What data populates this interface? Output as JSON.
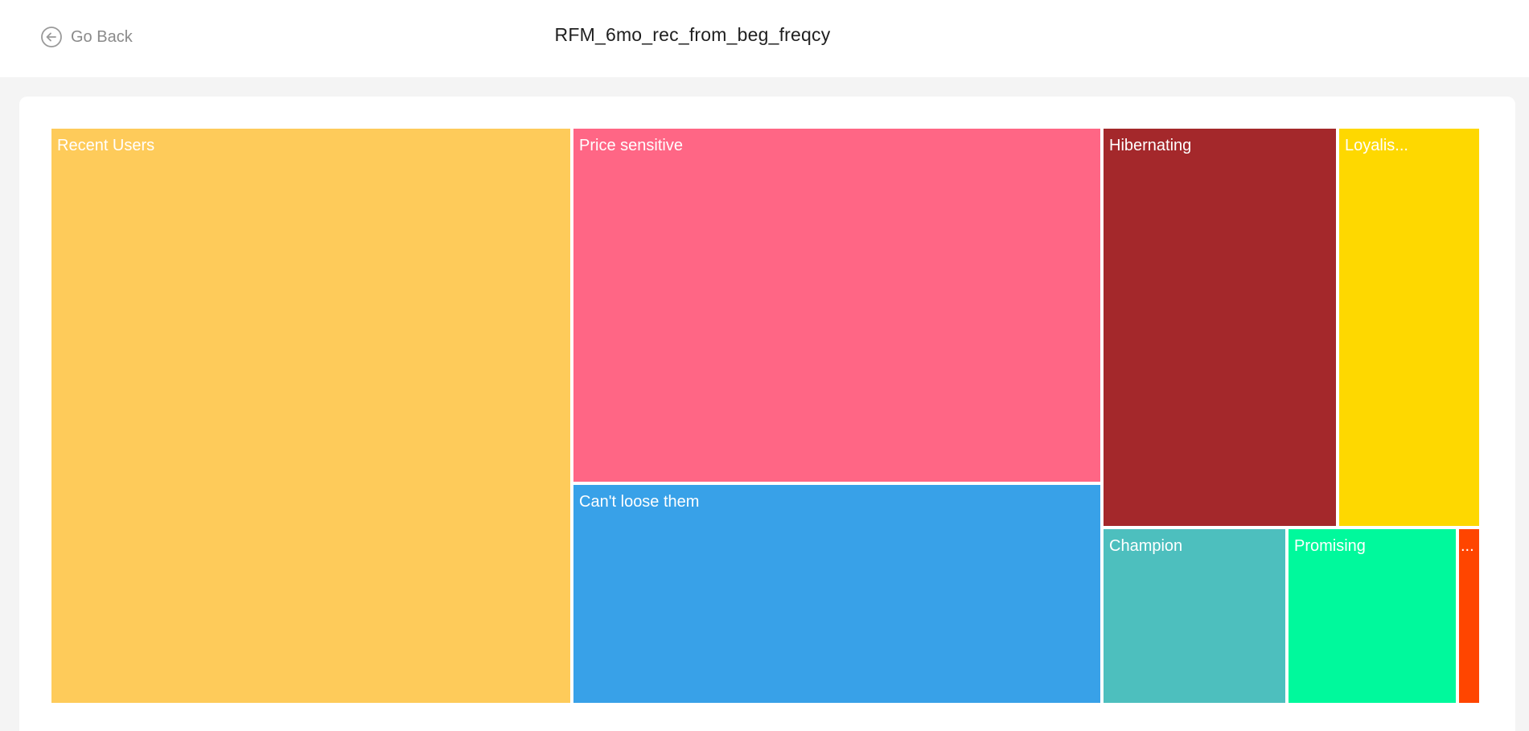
{
  "header": {
    "back_label": "Go Back",
    "back_icon": "arrow-left-circle-icon",
    "title": "RFM_6mo_rec_from_beg_freqcy"
  },
  "chart_data": {
    "type": "treemap",
    "title": "",
    "segments": [
      {
        "id": "recent-users",
        "label": "Recent Users",
        "color": "#fecb5a"
      },
      {
        "id": "price-sensitive",
        "label": "Price sensitive",
        "color": "#ff6685"
      },
      {
        "id": "cant-loose-them",
        "label": "Can't loose them",
        "color": "#38a1e8"
      },
      {
        "id": "hibernating",
        "label": "Hibernating",
        "color": "#a4282b"
      },
      {
        "id": "loyalists",
        "label": "Loyalis...",
        "color": "#fed800"
      },
      {
        "id": "champion",
        "label": "Champion",
        "color": "#4dbfbe"
      },
      {
        "id": "promising",
        "label": "Promising",
        "color": "#00f99c"
      },
      {
        "id": "other",
        "label": "...",
        "color": "#ff4500"
      }
    ]
  }
}
